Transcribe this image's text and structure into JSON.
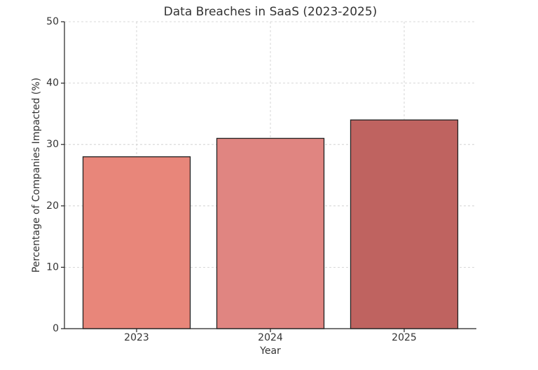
{
  "chart_data": {
    "type": "bar",
    "title": "Data Breaches in SaaS (2023-2025)",
    "x_label": "Year",
    "y_label": "Percentage of Companies Impacted (%)",
    "categories": [
      "2023",
      "2024",
      "2025"
    ],
    "values": [
      28,
      31,
      34
    ],
    "colors": [
      "#e8867a",
      "#e08581",
      "#bf6360"
    ],
    "ylim": [
      0,
      50
    ],
    "yticks": [
      0,
      10,
      20,
      30,
      40,
      50
    ],
    "grid": true
  }
}
